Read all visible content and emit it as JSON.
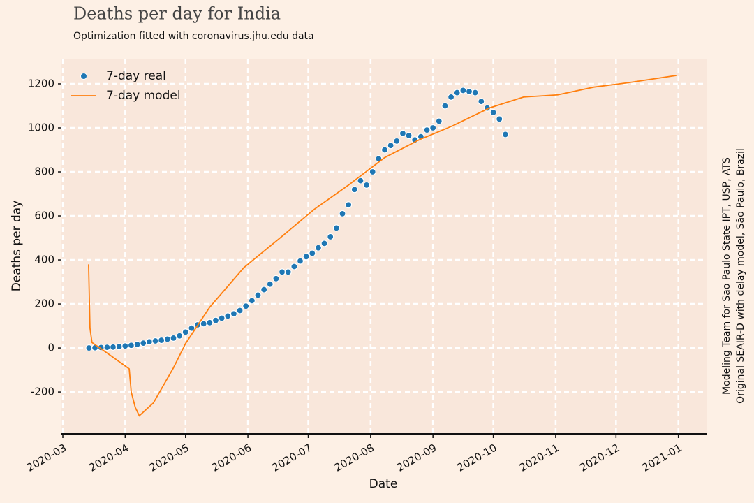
{
  "chart_data": {
    "type": "line_scatter",
    "title": "Deaths per day for India",
    "subtitle": "Optimization fitted with coronavirus.jhu.edu data",
    "xlabel": "Date",
    "ylabel": "Deaths per day",
    "side_notes": [
      "Modeling Team for Sao Paulo State IPT, USP, ATS",
      "Original SEAIR-D with delay model, São Paulo, Brazil"
    ],
    "xlim": [
      -0.7,
      320
    ],
    "ylim": [
      -387,
      1311
    ],
    "xticks": [
      {
        "value": 0,
        "label": "2020-03"
      },
      {
        "value": 31,
        "label": "2020-04"
      },
      {
        "value": 61,
        "label": "2020-05"
      },
      {
        "value": 92,
        "label": "2020-06"
      },
      {
        "value": 122,
        "label": "2020-07"
      },
      {
        "value": 153,
        "label": "2020-08"
      },
      {
        "value": 184,
        "label": "2020-09"
      },
      {
        "value": 214,
        "label": "2020-10"
      },
      {
        "value": 245,
        "label": "2020-11"
      },
      {
        "value": 275,
        "label": "2020-12"
      },
      {
        "value": 306,
        "label": "2021-01"
      }
    ],
    "yticks": [
      -200,
      0,
      200,
      400,
      600,
      800,
      1000,
      1200
    ],
    "grid": true,
    "legend": "upper left",
    "series": [
      {
        "name": "7-day real",
        "kind": "scatter",
        "color": "#1f77b4",
        "x": [
          13,
          16,
          19,
          22,
          25,
          28,
          31,
          34,
          37,
          40,
          43,
          46,
          49,
          52,
          55,
          58,
          61,
          64,
          67,
          70,
          73,
          76,
          79,
          82,
          85,
          88,
          91,
          94,
          97,
          100,
          103,
          106,
          109,
          112,
          115,
          118,
          121,
          124,
          127,
          130,
          133,
          136,
          139,
          142,
          145,
          148,
          151,
          154,
          157,
          160,
          163,
          166,
          169,
          172,
          175,
          178,
          181,
          184,
          187,
          190,
          193,
          196,
          199,
          202,
          205,
          208,
          211,
          214,
          217,
          220
        ],
        "values": [
          0,
          1,
          2,
          3,
          4,
          6,
          9,
          12,
          16,
          22,
          28,
          32,
          35,
          40,
          45,
          55,
          72,
          90,
          105,
          110,
          115,
          125,
          135,
          145,
          155,
          170,
          190,
          215,
          240,
          265,
          290,
          315,
          345,
          345,
          370,
          395,
          415,
          430,
          455,
          475,
          505,
          545,
          610,
          650,
          720,
          760,
          740,
          800,
          860,
          900,
          920,
          940,
          975,
          965,
          945,
          960,
          990,
          1000,
          1030,
          1100,
          1140,
          1160,
          1170,
          1165,
          1160,
          1120,
          1090,
          1070,
          1040,
          970
        ]
      },
      {
        "name": "7-day model",
        "kind": "line",
        "color": "#ff7f0e",
        "x": [
          12.8,
          13.5,
          14.5,
          20,
          33,
          34,
          36,
          38,
          45,
          55,
          61,
          73,
          90,
          108,
          125,
          142,
          160,
          177,
          194,
          212,
          229,
          246,
          264,
          281,
          305
        ],
        "values": [
          380,
          90,
          25,
          -10,
          -95,
          -200,
          -270,
          -308,
          -250,
          -90,
          20,
          185,
          365,
          500,
          630,
          740,
          865,
          945,
          1010,
          1090,
          1140,
          1150,
          1185,
          1205,
          1238
        ]
      }
    ]
  }
}
